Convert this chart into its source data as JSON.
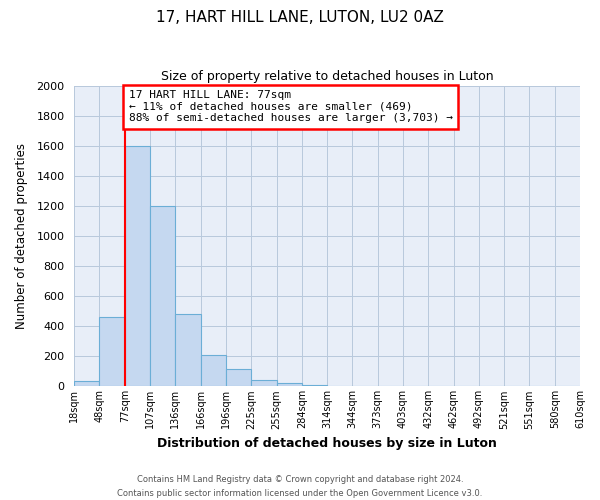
{
  "title": "17, HART HILL LANE, LUTON, LU2 0AZ",
  "subtitle": "Size of property relative to detached houses in Luton",
  "xlabel": "Distribution of detached houses by size in Luton",
  "ylabel": "Number of detached properties",
  "bin_labels": [
    "18sqm",
    "48sqm",
    "77sqm",
    "107sqm",
    "136sqm",
    "166sqm",
    "196sqm",
    "225sqm",
    "255sqm",
    "284sqm",
    "314sqm",
    "344sqm",
    "373sqm",
    "403sqm",
    "432sqm",
    "462sqm",
    "492sqm",
    "521sqm",
    "551sqm",
    "580sqm",
    "610sqm"
  ],
  "bar_values": [
    35,
    460,
    1600,
    1200,
    480,
    210,
    115,
    45,
    20,
    10,
    0,
    0,
    0,
    0,
    0,
    0,
    0,
    0,
    0,
    0
  ],
  "bar_color": "#c5d8f0",
  "bar_edge_color": "#6baed6",
  "red_line_bin": 2,
  "annotation_text": "17 HART HILL LANE: 77sqm\n← 11% of detached houses are smaller (469)\n88% of semi-detached houses are larger (3,703) →",
  "annotation_box_color": "white",
  "annotation_box_edge_color": "red",
  "red_line_color": "red",
  "ylim": [
    0,
    2000
  ],
  "yticks": [
    0,
    200,
    400,
    600,
    800,
    1000,
    1200,
    1400,
    1600,
    1800,
    2000
  ],
  "footer_line1": "Contains HM Land Registry data © Crown copyright and database right 2024.",
  "footer_line2": "Contains public sector information licensed under the Open Government Licence v3.0.",
  "bg_color": "#ffffff",
  "plot_bg_color": "#e8eef8",
  "grid_color": "#b8c8dc"
}
